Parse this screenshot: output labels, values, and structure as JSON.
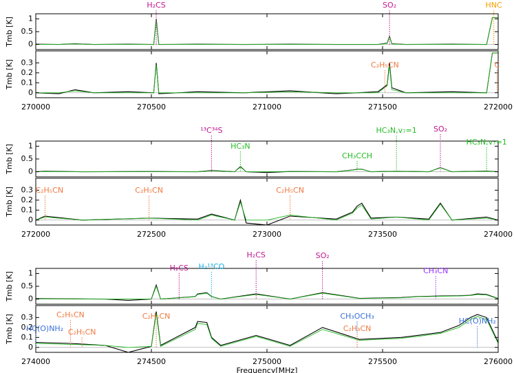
{
  "chart_data": [
    {
      "type": "line",
      "ylabel": "Tmb [K]",
      "xlim": [
        270000,
        272000
      ],
      "ylim": [
        -0.2,
        1.2
      ],
      "yticks": [
        0,
        0.5,
        1
      ],
      "xticks": [
        270000,
        270500,
        271000,
        271500,
        272000
      ],
      "x": [
        270000,
        270100,
        270170,
        270250,
        270400,
        270510,
        270521,
        270532,
        270700,
        270900,
        271100,
        271300,
        271480,
        271520,
        271530,
        271540,
        271600,
        271800,
        271950,
        271975,
        271980,
        272000
      ],
      "series": [
        {
          "color": "#000000",
          "values": [
            0.01,
            0,
            0.03,
            0,
            0.01,
            0,
            1.0,
            0,
            0.01,
            0,
            0.01,
            0,
            0,
            0.05,
            0.32,
            0.03,
            0,
            0.01,
            0,
            1.05,
            1.05,
            1.05
          ]
        },
        {
          "color": "#22bb22",
          "values": [
            0,
            0,
            0.02,
            0,
            0,
            0,
            0.95,
            0,
            0,
            0,
            0,
            0,
            0,
            0.04,
            0.3,
            0.02,
            0,
            0,
            0,
            1.05,
            1.05,
            1.05
          ]
        }
      ],
      "annotations": [
        {
          "text": "H₂CS",
          "x": 270521,
          "color": "#c0158f"
        },
        {
          "text": "SO₂",
          "x": 271530,
          "color": "#c0158f"
        },
        {
          "text": "HNC",
          "x": 271981,
          "color": "#f5a000"
        }
      ]
    },
    {
      "type": "line",
      "ylabel": "Tmb [K]",
      "xlim": [
        270000,
        272000
      ],
      "ylim": [
        -0.05,
        0.42
      ],
      "yticks": [
        0,
        0.1,
        0.2,
        0.3
      ],
      "xticks": [
        270000,
        270500,
        271000,
        271500,
        272000
      ],
      "x": [
        270000,
        270100,
        270170,
        270250,
        270400,
        270510,
        270521,
        270532,
        270700,
        270900,
        271100,
        271300,
        271480,
        271520,
        271530,
        271540,
        271600,
        271800,
        271950,
        271975,
        271980,
        272000
      ],
      "series": [
        {
          "color": "#000000",
          "values": [
            0,
            -0.01,
            0.03,
            0,
            0.01,
            0,
            0.3,
            -0.01,
            0.01,
            0,
            0.02,
            -0.01,
            0.01,
            0.08,
            0.3,
            0.05,
            0,
            0.01,
            0,
            0.4,
            0.4,
            0.4
          ]
        },
        {
          "color": "#22bb22",
          "values": [
            0,
            0,
            0.02,
            0,
            0,
            0,
            0.28,
            0,
            0,
            0,
            0.01,
            0,
            0,
            0.07,
            0.27,
            0.03,
            0,
            0,
            0,
            0.4,
            0.4,
            0.4
          ]
        }
      ],
      "annotations": [
        {
          "text": "C₂H₅CN",
          "x": 271510,
          "color": "#f07840"
        },
        {
          "text": "C",
          "x": 271995,
          "color": "#f07840"
        }
      ]
    },
    {
      "type": "line",
      "ylabel": "Tmb [K]",
      "xlim": [
        272000,
        274000
      ],
      "ylim": [
        -0.2,
        1.2
      ],
      "yticks": [
        0,
        0.5,
        1
      ],
      "xticks": [
        272000,
        272500,
        273000,
        273500,
        274000
      ],
      "x": [
        272000,
        272040,
        272200,
        272490,
        272700,
        272760,
        272860,
        272885,
        272910,
        273000,
        273100,
        273300,
        273370,
        273390,
        273410,
        273450,
        273560,
        273700,
        273750,
        273800,
        273950,
        274000
      ],
      "series": [
        {
          "color": "#000000",
          "values": [
            0,
            0.02,
            0,
            0.01,
            0,
            0.05,
            0,
            0.2,
            0,
            -0.03,
            0.01,
            0,
            0.07,
            0.1,
            0.1,
            0,
            0.02,
            0,
            0.16,
            0,
            0.03,
            0
          ]
        },
        {
          "color": "#22bb22",
          "values": [
            0,
            0.01,
            0,
            0.01,
            0,
            0.04,
            0,
            0.18,
            0,
            0,
            0.01,
            0,
            0.06,
            0.09,
            0.09,
            0,
            0.02,
            0,
            0.15,
            0,
            0.02,
            0
          ]
        }
      ],
      "annotations": [
        {
          "text": "¹³C³⁴S",
          "x": 272760,
          "color": "#c0158f"
        },
        {
          "text": "HC₃N",
          "x": 272885,
          "color": "#22bb22"
        },
        {
          "text": "CH₃CCH",
          "x": 273390,
          "color": "#22bb22"
        },
        {
          "text": "HC₃N,v₇=1",
          "x": 273560,
          "color": "#22bb22"
        },
        {
          "text": "SO₂",
          "x": 273750,
          "color": "#c0158f"
        },
        {
          "text": "HC₃N,v₇=1",
          "x": 273950,
          "color": "#22bb22"
        }
      ]
    },
    {
      "type": "line",
      "ylabel": "Tmb [K]",
      "xlim": [
        272000,
        274000
      ],
      "ylim": [
        -0.05,
        0.42
      ],
      "yticks": [
        0,
        0.1,
        0.2,
        0.3
      ],
      "xticks": [
        272000,
        272500,
        273000,
        273500,
        274000
      ],
      "x": [
        272000,
        272040,
        272200,
        272490,
        272700,
        272760,
        272860,
        272885,
        272910,
        273000,
        273100,
        273300,
        273370,
        273390,
        273410,
        273450,
        273560,
        273700,
        273750,
        273800,
        273950,
        274000
      ],
      "series": [
        {
          "color": "#000000",
          "values": [
            0,
            0.04,
            0,
            0.02,
            0.01,
            0.06,
            0,
            0.2,
            -0.03,
            -0.05,
            0.04,
            0.01,
            0.08,
            0.14,
            0.17,
            0.02,
            0.03,
            0.01,
            0.17,
            0,
            0.03,
            0
          ]
        },
        {
          "color": "#22bb22",
          "values": [
            0,
            0.03,
            0,
            0.02,
            0,
            0.05,
            0,
            0.18,
            0,
            0,
            0.05,
            0,
            0.07,
            0.12,
            0.15,
            0.01,
            0.03,
            0,
            0.16,
            0,
            0.02,
            0
          ]
        }
      ],
      "annotations": [
        {
          "text": "C₂H₅CN",
          "x": 272040,
          "color": "#f07840"
        },
        {
          "text": "C₂H₅CN",
          "x": 272490,
          "color": "#f07840"
        },
        {
          "text": "C₂H₅CN",
          "x": 273100,
          "color": "#f07840"
        }
      ]
    },
    {
      "type": "line",
      "ylabel": "Tmb [K]",
      "xlim": [
        274000,
        276000
      ],
      "ylim": [
        -0.2,
        1.2
      ],
      "yticks": [
        0,
        0.5,
        1
      ],
      "xticks": [
        274000,
        274500,
        275000,
        275500,
        276000
      ],
      "x": [
        274000,
        274150,
        274300,
        274400,
        274500,
        274521,
        274540,
        274690,
        274700,
        274740,
        274760,
        274800,
        274953,
        275100,
        275240,
        275400,
        275580,
        275650,
        275750,
        275830,
        275880,
        275910,
        275950,
        276000
      ],
      "series": [
        {
          "color": "#000000",
          "values": [
            0.02,
            0.01,
            0,
            -0.05,
            0,
            0.55,
            0,
            0.1,
            0.2,
            0.25,
            0.1,
            0,
            0.2,
            0,
            0.25,
            0.03,
            0.06,
            0.1,
            0.12,
            0.13,
            0.15,
            0.2,
            0.18,
            0.02
          ]
        },
        {
          "color": "#22bb22",
          "values": [
            0.01,
            0.01,
            0,
            0,
            0,
            0.5,
            0,
            0.09,
            0.18,
            0.23,
            0.09,
            0,
            0.18,
            0,
            0.23,
            0.02,
            0.05,
            0.09,
            0.11,
            0.12,
            0.14,
            0.18,
            0.16,
            0.01
          ]
        }
      ],
      "annotations": [
        {
          "text": "H₂CS",
          "x": 274620,
          "color": "#c0158f"
        },
        {
          "text": "H₂¹³CO",
          "x": 274760,
          "color": "#1ab0e0"
        },
        {
          "text": "H₂CS",
          "x": 274953,
          "color": "#c0158f"
        },
        {
          "text": "SO₂",
          "x": 275240,
          "color": "#c0158f"
        },
        {
          "text": "CH₃CN",
          "x": 275730,
          "color": "#9933ff"
        }
      ]
    },
    {
      "type": "line",
      "ylabel": "Tmb [K]",
      "xlabel": "Frequency[MHz]",
      "xlim": [
        274000,
        276000
      ],
      "ylim": [
        -0.05,
        0.42
      ],
      "yticks": [
        0,
        0.1,
        0.2,
        0.3
      ],
      "xticks": [
        274000,
        274500,
        275000,
        275500,
        276000
      ],
      "x": [
        274000,
        274150,
        274300,
        274400,
        274500,
        274521,
        274540,
        274690,
        274700,
        274740,
        274760,
        274800,
        274953,
        275100,
        275240,
        275400,
        275580,
        275650,
        275750,
        275830,
        275880,
        275910,
        275950,
        276000
      ],
      "series": [
        {
          "color": "#000000",
          "values": [
            0.05,
            0.04,
            0.02,
            -0.05,
            0.01,
            0.36,
            0.02,
            0.2,
            0.26,
            0.25,
            0.1,
            0.02,
            0.12,
            0.02,
            0.2,
            0.08,
            0.1,
            0.12,
            0.15,
            0.22,
            0.3,
            0.33,
            0.3,
            0.05
          ]
        },
        {
          "color": "#22bb22",
          "values": [
            0.04,
            0.03,
            0.02,
            0,
            0.01,
            0.34,
            0.01,
            0.18,
            0.24,
            0.23,
            0.09,
            0.01,
            0.11,
            0.01,
            0.18,
            0.07,
            0.09,
            0.11,
            0.14,
            0.2,
            0.28,
            0.31,
            0.28,
            0.04
          ]
        }
      ],
      "annotations": [
        {
          "text": "HC(O)NH₂",
          "x": 274000,
          "color": "#3a6fd8"
        },
        {
          "text": "C₂H₅CN",
          "x": 274150,
          "color": "#f07840"
        },
        {
          "text": "C₂H₅CN",
          "x": 274200,
          "color": "#f07840"
        },
        {
          "text": "C₂H₅CN",
          "x": 274521,
          "color": "#f07840"
        },
        {
          "text": "CH₃OCH₃",
          "x": 275390,
          "color": "#3a6fd8"
        },
        {
          "text": "C₂H₃CN",
          "x": 275390,
          "color": "#f07840"
        },
        {
          "text": "HC(O)NH₂",
          "x": 275910,
          "color": "#3a6fd8"
        }
      ]
    }
  ]
}
